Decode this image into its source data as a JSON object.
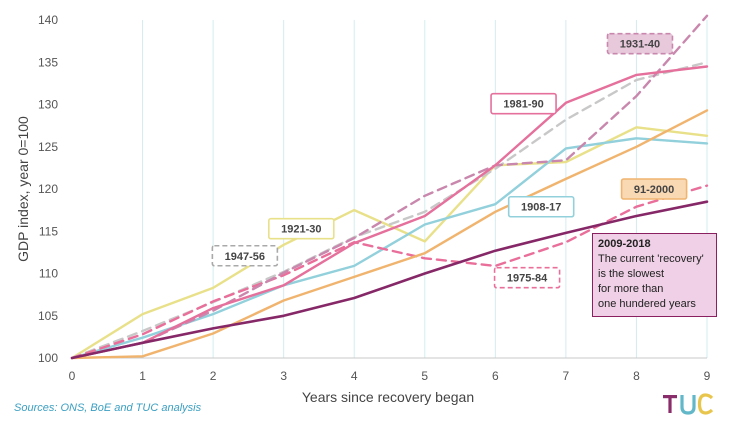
{
  "chart_data": {
    "type": "line",
    "title": "",
    "xlabel": "Years since recovery began",
    "ylabel": "GDP index, year 0=100",
    "xlim": [
      0,
      9
    ],
    "ylim": [
      100,
      140
    ],
    "x_ticks": [
      "0",
      "1",
      "2",
      "3",
      "4",
      "5",
      "6",
      "7",
      "8",
      "9"
    ],
    "y_ticks": [
      "100",
      "105",
      "110",
      "115",
      "120",
      "125",
      "130",
      "135",
      "140"
    ],
    "grid": "vertical",
    "series": [
      {
        "name": "1921-30",
        "color": "#e9e08a",
        "dash": false,
        "x": [
          0,
          1,
          2,
          3,
          4,
          5,
          6,
          7,
          8,
          9
        ],
        "y": [
          100,
          105.2,
          108.3,
          113.4,
          117.5,
          113.8,
          122.8,
          123.2,
          127.3,
          126.3
        ]
      },
      {
        "name": "1947-56",
        "color": "#c8c8c8",
        "dash": true,
        "x": [
          0,
          1,
          2,
          3,
          4,
          5,
          6,
          7,
          8,
          9
        ],
        "y": [
          100,
          103.2,
          106.6,
          110.2,
          114.3,
          117.3,
          122.4,
          128.2,
          132.9,
          135.0
        ]
      },
      {
        "name": "1908-17",
        "color": "#92d0dc",
        "dash": false,
        "x": [
          0,
          1,
          2,
          3,
          4,
          5,
          6,
          7,
          8,
          9
        ],
        "y": [
          100,
          102.4,
          105.2,
          108.6,
          110.9,
          115.8,
          118.2,
          124.8,
          126.0,
          125.4
        ]
      },
      {
        "name": "1975-84",
        "color": "#e96f9a",
        "dash": true,
        "x": [
          0,
          1,
          2,
          3,
          4,
          5,
          6,
          7,
          8,
          9
        ],
        "y": [
          100,
          102.8,
          106.7,
          109.8,
          113.7,
          111.8,
          110.9,
          113.7,
          117.9,
          120.4
        ]
      },
      {
        "name": "1931-40",
        "color": "#c987ad",
        "dash": true,
        "x": [
          0,
          1,
          2,
          3,
          4,
          5,
          6,
          7,
          8,
          9
        ],
        "y": [
          100,
          101.8,
          105.6,
          110.1,
          114.2,
          119.2,
          122.8,
          123.4,
          131.0,
          140.5
        ]
      },
      {
        "name": "91-2000",
        "color": "#f0b46e",
        "dash": false,
        "x": [
          0,
          1,
          2,
          3,
          4,
          5,
          6,
          7,
          8,
          9
        ],
        "y": [
          100,
          100.2,
          102.9,
          106.8,
          109.6,
          112.4,
          117.3,
          121.2,
          125.0,
          129.3
        ]
      },
      {
        "name": "1981-90",
        "color": "#e5709b",
        "dash": false,
        "x": [
          0,
          1,
          2,
          3,
          4,
          5,
          6,
          7,
          8,
          9
        ],
        "y": [
          100,
          101.8,
          105.9,
          108.6,
          113.6,
          116.8,
          122.8,
          130.2,
          133.5,
          134.5
        ]
      },
      {
        "name": "2009-2018",
        "color": "#862868",
        "dash": false,
        "x": [
          0,
          1,
          2,
          3,
          4,
          5,
          6,
          7,
          8,
          9
        ],
        "y": [
          100,
          101.8,
          103.5,
          105.0,
          107.1,
          110.0,
          112.7,
          114.8,
          116.8,
          118.5
        ]
      }
    ],
    "labels": [
      {
        "text": "1921-30",
        "border": "#e9e08a",
        "fill": "#ffffff",
        "dash": false
      },
      {
        "text": "1947-56",
        "border": "#a9a9a9",
        "fill": "#ffffff",
        "dash": true
      },
      {
        "text": "1908-17",
        "border": "#92d0dc",
        "fill": "#ffffff",
        "dash": false
      },
      {
        "text": "1975-84",
        "border": "#e96f9a",
        "fill": "#ffffff",
        "dash": true
      },
      {
        "text": "1931-40",
        "border": "#c987ad",
        "fill": "#e8c9dc",
        "dash": true
      },
      {
        "text": "91-2000",
        "border": "#f0b46e",
        "fill": "#f9d9b4",
        "dash": false
      },
      {
        "text": "1981-90",
        "border": "#e5709b",
        "fill": "#ffffff",
        "dash": false
      }
    ],
    "annotation": {
      "title": "2009-2018",
      "lines": [
        "The current 'recovery'",
        "is the slowest",
        "for more than",
        "one hundered years"
      ]
    }
  },
  "source_text": "Sources: ONS, BoE and TUC analysis",
  "logo_text": "TUC",
  "logo_colors": [
    "#8a2d6b",
    "#62b8c9",
    "#e8c64d"
  ]
}
